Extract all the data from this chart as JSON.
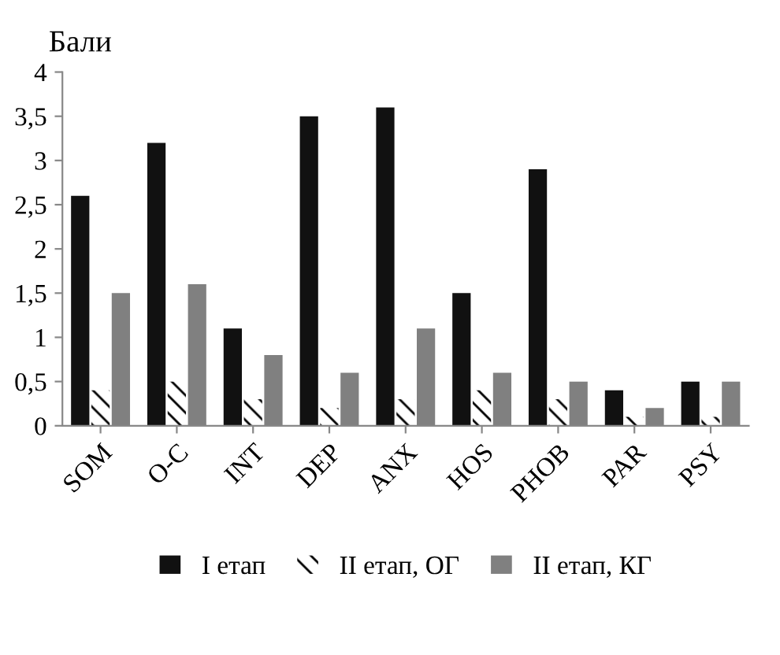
{
  "chart_data": {
    "type": "bar",
    "ylabel": "Бали",
    "categories": [
      "SOM",
      "O-C",
      "INT",
      "DEP",
      "ANX",
      "HOS",
      "PHOB",
      "PAR",
      "PSY"
    ],
    "series": [
      {
        "name": "I етап",
        "color": "#111111",
        "values": [
          2.6,
          3.2,
          1.1,
          3.5,
          3.6,
          1.5,
          2.9,
          0.4,
          0.5
        ]
      },
      {
        "name": "II етап, ОГ",
        "color": "#ffffff",
        "values": [
          0.4,
          0.5,
          0.3,
          0.2,
          0.3,
          0.4,
          0.3,
          0.1,
          0.1
        ]
      },
      {
        "name": "II етап, КГ",
        "color": "#808080",
        "values": [
          1.5,
          1.6,
          0.8,
          0.6,
          1.1,
          0.6,
          0.5,
          0.2,
          0.5
        ]
      }
    ],
    "ylim": [
      0,
      4
    ],
    "yticks": [
      0,
      {
        "value": 0.5,
        "label": "0,5"
      },
      1,
      {
        "value": 1.5,
        "label": "1,5"
      },
      2,
      {
        "value": 2.5,
        "label": "2,5"
      },
      3,
      {
        "value": 3.5,
        "label": "3,5"
      },
      4
    ],
    "legend": "bottom",
    "grid": false
  }
}
